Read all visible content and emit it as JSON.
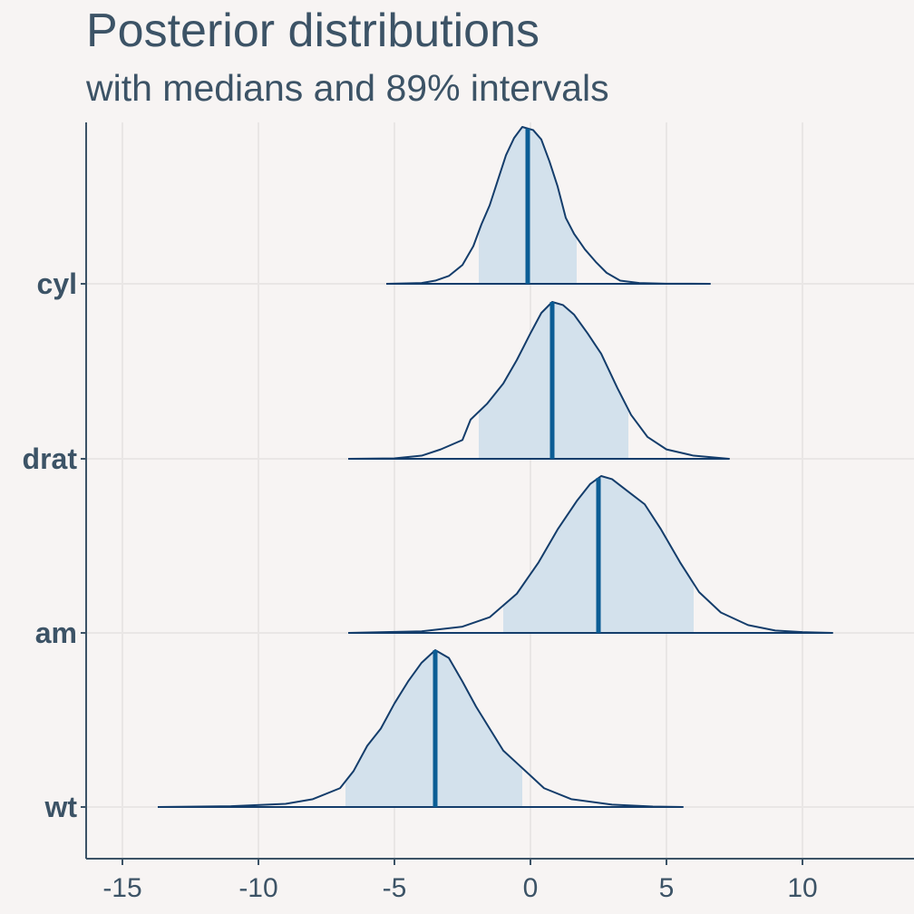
{
  "chart_data": {
    "type": "area",
    "subtype": "ridgeline-posterior-densities",
    "title": "Posterior distributions",
    "subtitle": "with medians and 89% intervals",
    "xlabel": "",
    "ylabel": "",
    "xlim": [
      -16.5,
      14
    ],
    "x_ticks": [
      -15,
      -10,
      -5,
      0,
      5,
      10
    ],
    "x_tick_labels": [
      "-15",
      "-10",
      "-5",
      "0",
      "5",
      "10"
    ],
    "grid": true,
    "legend": "none",
    "colors": {
      "background": "#f7f4f3",
      "grid": "#e9e6e5",
      "axis": "#3c5366",
      "text": "#3c5366",
      "outline": "#143d6b",
      "interval_fill": "#d3e1ec",
      "median": "#0b5d95"
    },
    "series": [
      {
        "name": "cyl",
        "range": [
          -5.3,
          6.6
        ],
        "median": -0.1,
        "interval_89": [
          -1.9,
          1.7
        ],
        "density": [
          [
            -5.3,
            0
          ],
          [
            -4,
            0.005
          ],
          [
            -3.5,
            0.02
          ],
          [
            -3,
            0.05
          ],
          [
            -2.5,
            0.12
          ],
          [
            -2.1,
            0.24
          ],
          [
            -1.8,
            0.38
          ],
          [
            -1.5,
            0.5
          ],
          [
            -1.2,
            0.66
          ],
          [
            -0.9,
            0.82
          ],
          [
            -0.6,
            0.93
          ],
          [
            -0.3,
            1
          ],
          [
            0.1,
            0.98
          ],
          [
            0.4,
            0.92
          ],
          [
            0.7,
            0.78
          ],
          [
            1,
            0.62
          ],
          [
            1.3,
            0.42
          ],
          [
            1.6,
            0.32
          ],
          [
            2,
            0.22
          ],
          [
            2.4,
            0.14
          ],
          [
            2.8,
            0.07
          ],
          [
            3.3,
            0.02
          ],
          [
            4,
            0.005
          ],
          [
            5,
            0.001
          ],
          [
            6.6,
            0
          ]
        ]
      },
      {
        "name": "drat",
        "range": [
          -6.7,
          7.3
        ],
        "median": 0.8,
        "interval_89": [
          -1.9,
          3.6
        ],
        "density": [
          [
            -6.7,
            0
          ],
          [
            -5,
            0.003
          ],
          [
            -4,
            0.02
          ],
          [
            -3.3,
            0.06
          ],
          [
            -2.5,
            0.12
          ],
          [
            -2.2,
            0.25
          ],
          [
            -1.6,
            0.35
          ],
          [
            -1,
            0.48
          ],
          [
            -0.5,
            0.63
          ],
          [
            0,
            0.8
          ],
          [
            0.4,
            0.93
          ],
          [
            0.8,
            1
          ],
          [
            1.2,
            0.98
          ],
          [
            1.6,
            0.92
          ],
          [
            2.1,
            0.8
          ],
          [
            2.6,
            0.67
          ],
          [
            3.2,
            0.45
          ],
          [
            3.7,
            0.28
          ],
          [
            4.3,
            0.14
          ],
          [
            5,
            0.06
          ],
          [
            6,
            0.02
          ],
          [
            7.3,
            0
          ]
        ]
      },
      {
        "name": "am",
        "range": [
          -6.7,
          11.1
        ],
        "median": 2.5,
        "interval_89": [
          -1,
          6
        ],
        "density": [
          [
            -6.7,
            0
          ],
          [
            -4,
            0.01
          ],
          [
            -2.5,
            0.04
          ],
          [
            -1.5,
            0.1
          ],
          [
            -0.5,
            0.25
          ],
          [
            0.3,
            0.45
          ],
          [
            1,
            0.66
          ],
          [
            1.7,
            0.84
          ],
          [
            2.2,
            0.95
          ],
          [
            2.6,
            1
          ],
          [
            3,
            0.98
          ],
          [
            3.6,
            0.9
          ],
          [
            4.2,
            0.82
          ],
          [
            4.8,
            0.66
          ],
          [
            5.5,
            0.45
          ],
          [
            6.2,
            0.26
          ],
          [
            7,
            0.13
          ],
          [
            8,
            0.05
          ],
          [
            9,
            0.015
          ],
          [
            10,
            0.005
          ],
          [
            11.1,
            0
          ]
        ]
      },
      {
        "name": "wt",
        "range": [
          -13.7,
          5.6
        ],
        "median": -3.5,
        "interval_89": [
          -6.8,
          -0.3
        ],
        "density": [
          [
            -13.7,
            0
          ],
          [
            -11,
            0.005
          ],
          [
            -9,
            0.02
          ],
          [
            -8,
            0.05
          ],
          [
            -7,
            0.12
          ],
          [
            -6.5,
            0.23
          ],
          [
            -6,
            0.39
          ],
          [
            -5.5,
            0.5
          ],
          [
            -5,
            0.66
          ],
          [
            -4.5,
            0.8
          ],
          [
            -4,
            0.92
          ],
          [
            -3.5,
            1
          ],
          [
            -3,
            0.95
          ],
          [
            -2.5,
            0.8
          ],
          [
            -2,
            0.64
          ],
          [
            -1.5,
            0.5
          ],
          [
            -1,
            0.36
          ],
          [
            -0.5,
            0.28
          ],
          [
            0,
            0.2
          ],
          [
            0.5,
            0.12
          ],
          [
            1.5,
            0.05
          ],
          [
            3,
            0.015
          ],
          [
            4.5,
            0.003
          ],
          [
            5.6,
            0
          ]
        ]
      }
    ]
  }
}
